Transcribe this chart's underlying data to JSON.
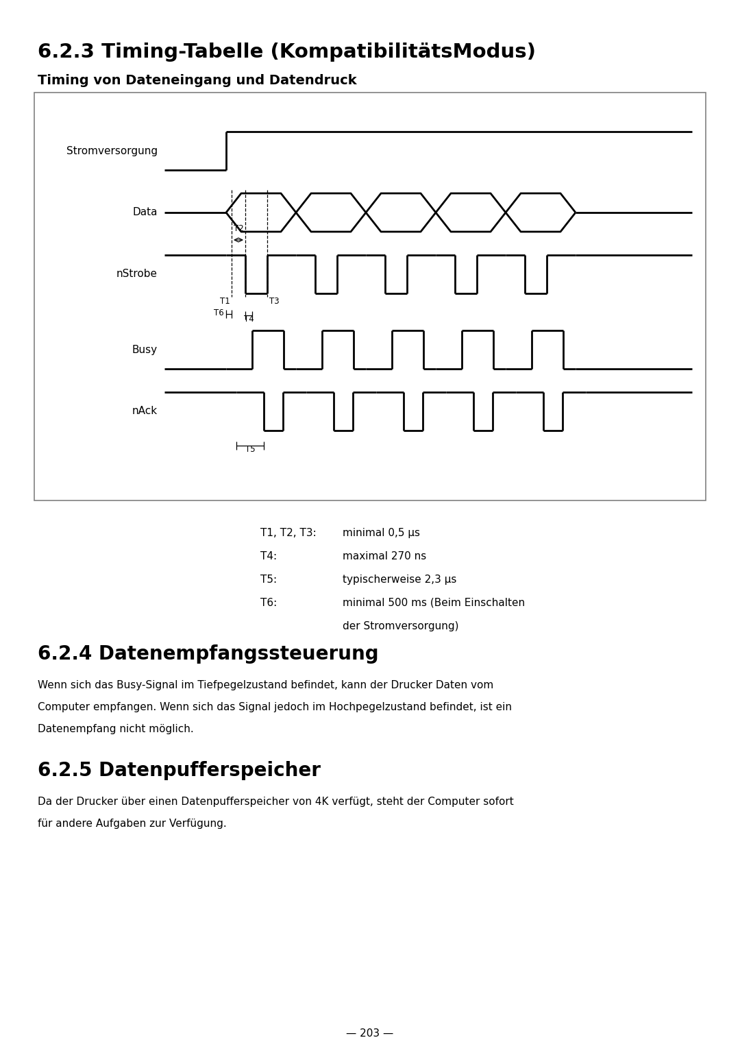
{
  "title": "6.2.3 Timing-Tabelle (KompatibilitätsModus)",
  "subtitle": "Timing von Dateneingang und Datendruck",
  "section_624_title": "6.2.4 Datenempfangssteuerung",
  "section_624_text_lines": [
    "Wenn sich das Busy-Signal im Tiefpegelzustand befindet, kann der Drucker Daten vom",
    "Computer empfangen. Wenn sich das Signal jedoch im Hochpegelzustand befindet, ist ein",
    "Datenempfang nicht möglich."
  ],
  "section_625_title": "6.2.5 Datenpufferspeicher",
  "section_625_text_lines": [
    "Da der Drucker über einen Datenpufferspeicher von 4K verfügt, steht der Computer sofort",
    "für andere Aufgaben zur Verfügung."
  ],
  "timing_note_lines": [
    [
      "T1, T2, T3:",
      "minimal 0,5 μs"
    ],
    [
      "T4:",
      "maximal 270 ns"
    ],
    [
      "T5:",
      "typischerweise 2,3 μs"
    ],
    [
      "T6:",
      "minimal 500 ms (Beim Einschalten"
    ],
    [
      "",
      "der Stromversorgung)"
    ]
  ],
  "page_number": "— 203 —",
  "bg_color": "#ffffff",
  "text_color": "#000000",
  "diagram_border_color": "#808080"
}
